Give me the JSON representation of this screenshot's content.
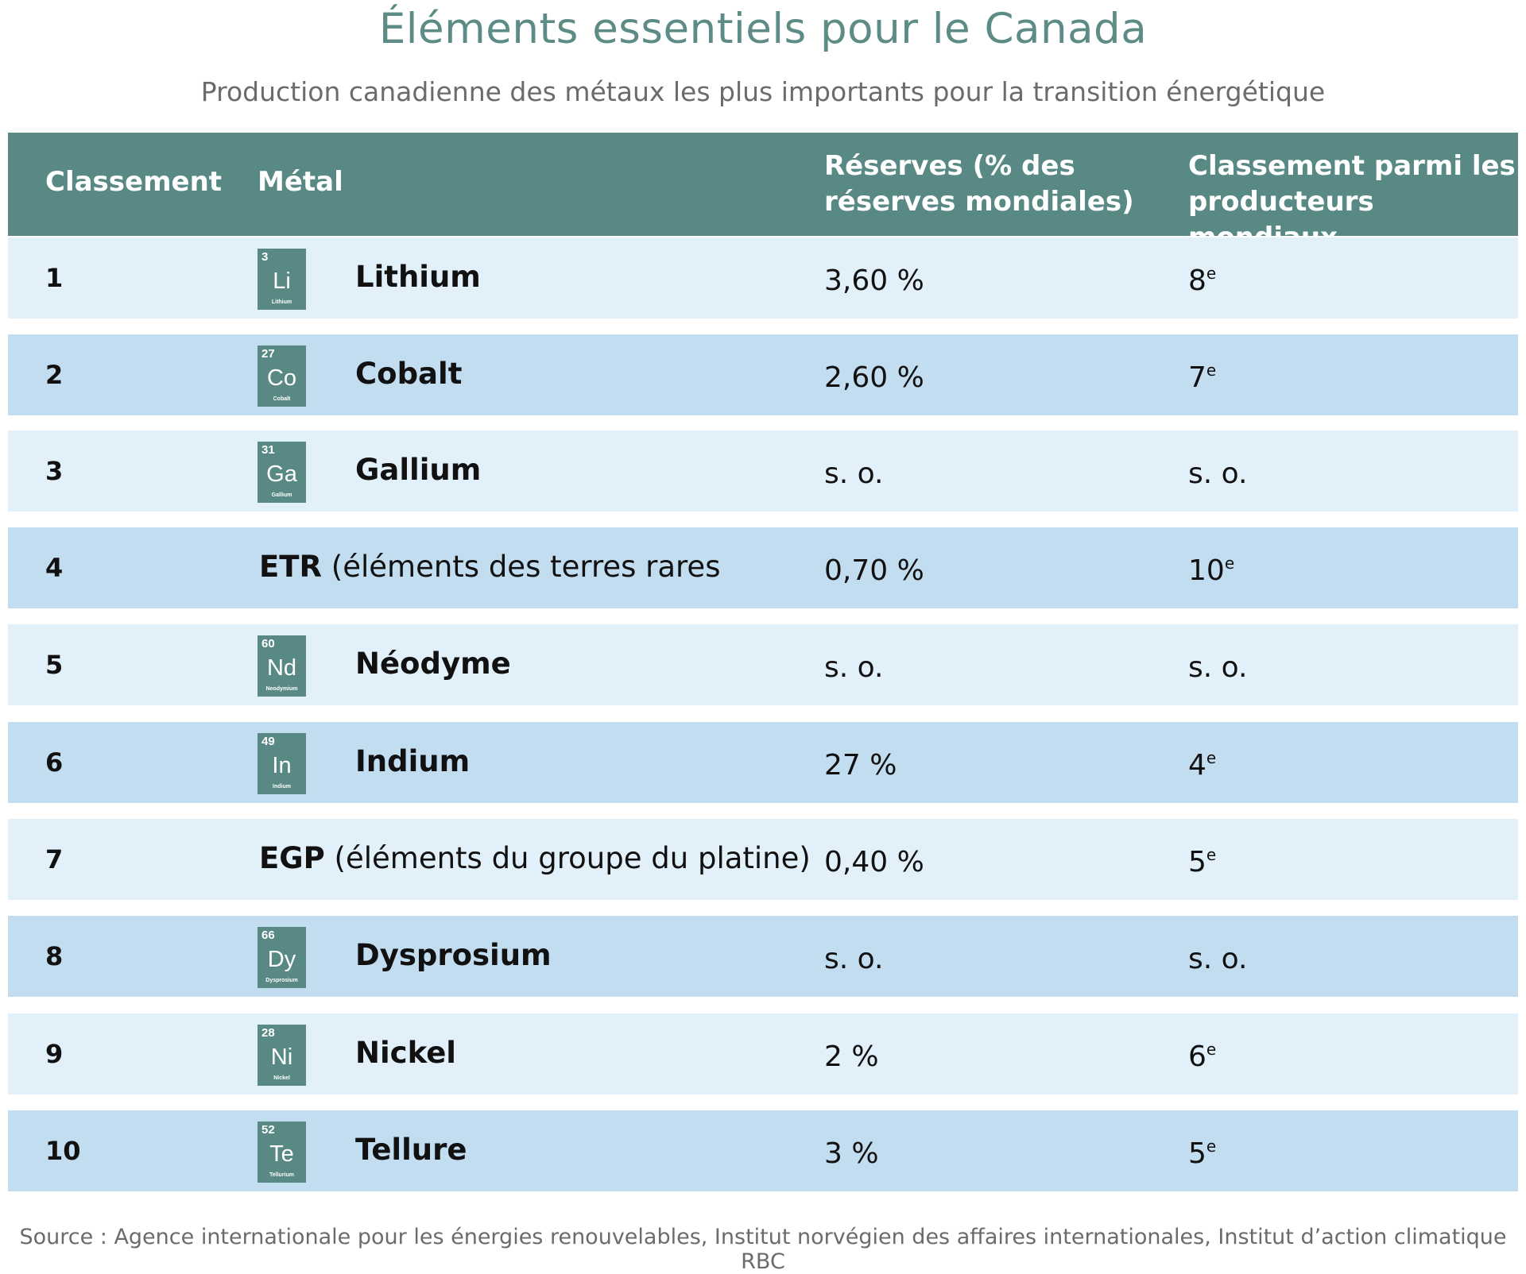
{
  "title": "Éléments essentiels pour le Canada",
  "subtitle": "Production canadienne des métaux les plus importants pour la transition énergétique",
  "headers": {
    "rank": "Classement",
    "metal": "Métal",
    "reserves": "Réserves (% des réserves mondiales)",
    "producers": "Classement parmi les producteurs mondiaux"
  },
  "rows": [
    {
      "rank": "1",
      "element": {
        "number": "3",
        "symbol": "Li",
        "name": "Lithium"
      },
      "metal": "Lithium",
      "reserves": "3,60 %",
      "producer_rank": "8",
      "producer_suffix": "e"
    },
    {
      "rank": "2",
      "element": {
        "number": "27",
        "symbol": "Co",
        "name": "Cobalt"
      },
      "metal": "Cobalt",
      "reserves": "2,60 %",
      "producer_rank": "7",
      "producer_suffix": "e"
    },
    {
      "rank": "3",
      "element": {
        "number": "31",
        "symbol": "Ga",
        "name": "Gallium"
      },
      "metal": "Gallium",
      "reserves": "s. o.",
      "producer_rank": "s. o.",
      "producer_suffix": ""
    },
    {
      "rank": "4",
      "group_abbr": "ETR",
      "group_desc": "(éléments des terres rares",
      "reserves": "0,70 %",
      "producer_rank": "10",
      "producer_suffix": "e"
    },
    {
      "rank": "5",
      "element": {
        "number": "60",
        "symbol": "Nd",
        "name": "Neodymium"
      },
      "metal": "Néodyme",
      "reserves": "s. o.",
      "producer_rank": "s. o.",
      "producer_suffix": ""
    },
    {
      "rank": "6",
      "element": {
        "number": "49",
        "symbol": "In",
        "name": "Indium"
      },
      "metal": "Indium",
      "reserves": "27 %",
      "producer_rank": "4",
      "producer_suffix": "e"
    },
    {
      "rank": "7",
      "group_abbr": "EGP",
      "group_desc": "(éléments du groupe du platine)",
      "reserves": "0,40 %",
      "producer_rank": "5",
      "producer_suffix": "e"
    },
    {
      "rank": "8",
      "element": {
        "number": "66",
        "symbol": "Dy",
        "name": "Dysprosium"
      },
      "metal": "Dysprosium",
      "reserves": "s. o.",
      "producer_rank": "s. o.",
      "producer_suffix": ""
    },
    {
      "rank": "9",
      "element": {
        "number": "28",
        "symbol": "Ni",
        "name": "Nickel"
      },
      "metal": "Nickel",
      "reserves": "2 %",
      "producer_rank": "6",
      "producer_suffix": "e"
    },
    {
      "rank": "10",
      "element": {
        "number": "52",
        "symbol": "Te",
        "name": "Tellurium"
      },
      "metal": "Tellure",
      "reserves": "3 %",
      "producer_rank": "5",
      "producer_suffix": "e"
    }
  ],
  "source": "Source : Agence internationale pour les énergies renouvelables, Institut norvégien des affaires internationales, Institut d’action climatique RBC",
  "colors": {
    "header": "#588985",
    "title": "#5d8c87",
    "row_light": "#e2f0fa",
    "row_dark": "#c2dcf0"
  }
}
